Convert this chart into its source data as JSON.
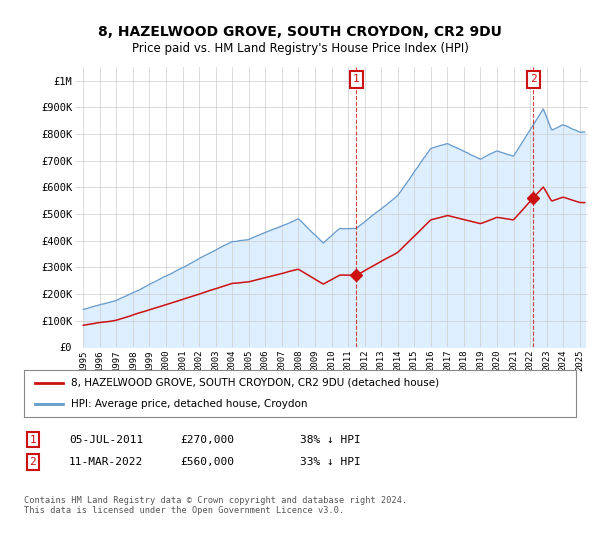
{
  "title": "8, HAZELWOOD GROVE, SOUTH CROYDON, CR2 9DU",
  "subtitle": "Price paid vs. HM Land Registry's House Price Index (HPI)",
  "ylabel_ticks": [
    "£0",
    "£100K",
    "£200K",
    "£300K",
    "£400K",
    "£500K",
    "£600K",
    "£700K",
    "£800K",
    "£900K",
    "£1M"
  ],
  "ytick_vals": [
    0,
    100000,
    200000,
    300000,
    400000,
    500000,
    600000,
    700000,
    800000,
    900000,
    1000000
  ],
  "ylim": [
    0,
    1050000
  ],
  "xlim_start": 1994.5,
  "xlim_end": 2025.5,
  "background_color": "#ffffff",
  "grid_color": "#cccccc",
  "hpi_line_color": "#6699cc",
  "hpi_fill_color": "#ddeeff",
  "price_line_color": "#cc1111",
  "ann1_x": 2011.5,
  "ann1_y": 270000,
  "ann2_x": 2022.2,
  "ann2_y": 560000,
  "vline_color": "#cc1111",
  "legend_red_label": "8, HAZELWOOD GROVE, SOUTH CROYDON, CR2 9DU (detached house)",
  "legend_blue_label": "HPI: Average price, detached house, Croydon",
  "note1_date": "05-JUL-2011",
  "note1_price": "£270,000",
  "note1_pct": "38% ↓ HPI",
  "note2_date": "11-MAR-2022",
  "note2_price": "£560,000",
  "note2_pct": "33% ↓ HPI",
  "footer": "Contains HM Land Registry data © Crown copyright and database right 2024.\nThis data is licensed under the Open Government Licence v3.0."
}
